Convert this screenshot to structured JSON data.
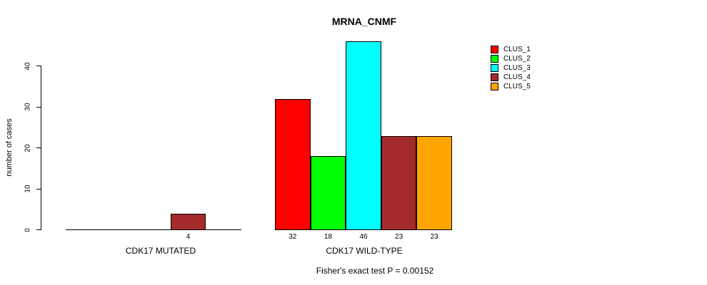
{
  "chart_data": {
    "type": "bar",
    "title": "MRNA_CNMF",
    "ylabel": "number of cases",
    "xlabel": "",
    "yticks": [
      0,
      10,
      20,
      30,
      40
    ],
    "ylim": [
      0,
      46
    ],
    "grid": false,
    "legend_position": "top-right-outside",
    "series": [
      "CLUS_1",
      "CLUS_2",
      "CLUS_3",
      "CLUS_4",
      "CLUS_5"
    ],
    "colors": [
      "#ff0000",
      "#00ff00",
      "#00ffff",
      "#a52a2a",
      "#ffa500"
    ],
    "groups": [
      {
        "label": "CDK17 MUTATED",
        "values": [
          0,
          0,
          0,
          4,
          0
        ]
      },
      {
        "label": "CDK17 WILD-TYPE",
        "values": [
          32,
          18,
          46,
          23,
          23
        ]
      }
    ],
    "bar_value_labels_rule": "value printed under each non-zero bar",
    "annotation": "Fisher's exact test P = 0.00152"
  }
}
